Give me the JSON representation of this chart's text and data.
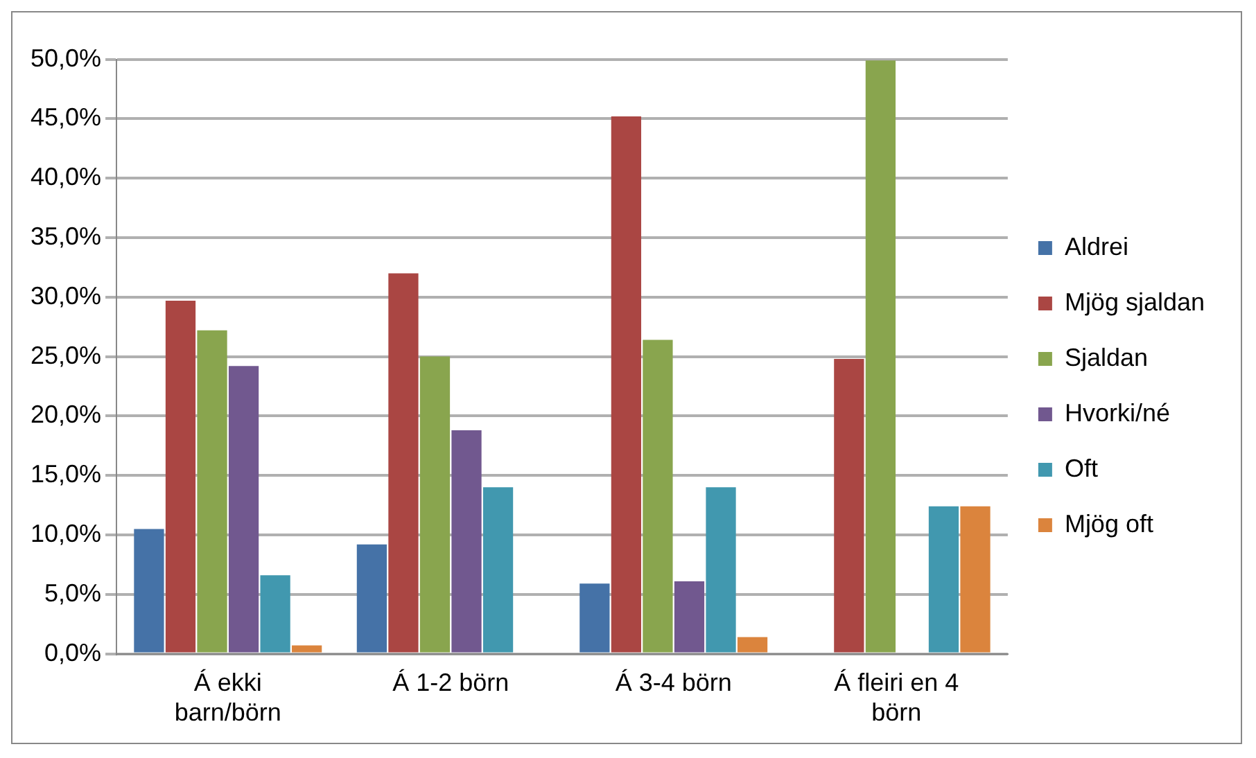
{
  "chart_data": {
    "type": "bar",
    "categories": [
      "Á ekki barn/börn",
      "Á 1-2 börn",
      "Á 3-4 börn",
      "Á fleiri en 4 börn"
    ],
    "series": [
      {
        "name": "Aldrei",
        "color": "#4572a7",
        "values": [
          10.5,
          9.2,
          5.9,
          0
        ]
      },
      {
        "name": "Mjög sjaldan",
        "color": "#aa4643",
        "values": [
          29.7,
          32,
          45.2,
          24.8
        ]
      },
      {
        "name": "Sjaldan",
        "color": "#89a54e",
        "values": [
          27.2,
          25,
          26.4,
          49.9
        ]
      },
      {
        "name": "Hvorki/né",
        "color": "#71588f",
        "values": [
          24.2,
          18.8,
          6.1,
          0
        ]
      },
      {
        "name": "Oft",
        "color": "#4198af",
        "values": [
          6.6,
          14,
          14,
          12.4
        ]
      },
      {
        "name": "Mjög oft",
        "color": "#db843d",
        "values": [
          0.7,
          0,
          1.4,
          12.4
        ]
      }
    ],
    "ylim": [
      0,
      50
    ],
    "yticks": [
      {
        "value": 0,
        "label": "0,0%"
      },
      {
        "value": 5,
        "label": "5,0%"
      },
      {
        "value": 10,
        "label": "10,0%"
      },
      {
        "value": 15,
        "label": "15,0%"
      },
      {
        "value": 20,
        "label": "20,0%"
      },
      {
        "value": 25,
        "label": "25,0%"
      },
      {
        "value": 30,
        "label": "30,0%"
      },
      {
        "value": 35,
        "label": "35,0%"
      },
      {
        "value": 40,
        "label": "40,0%"
      },
      {
        "value": 45,
        "label": "45,0%"
      },
      {
        "value": 50,
        "label": "50,0%"
      }
    ],
    "grid": "y",
    "legend": "right"
  }
}
